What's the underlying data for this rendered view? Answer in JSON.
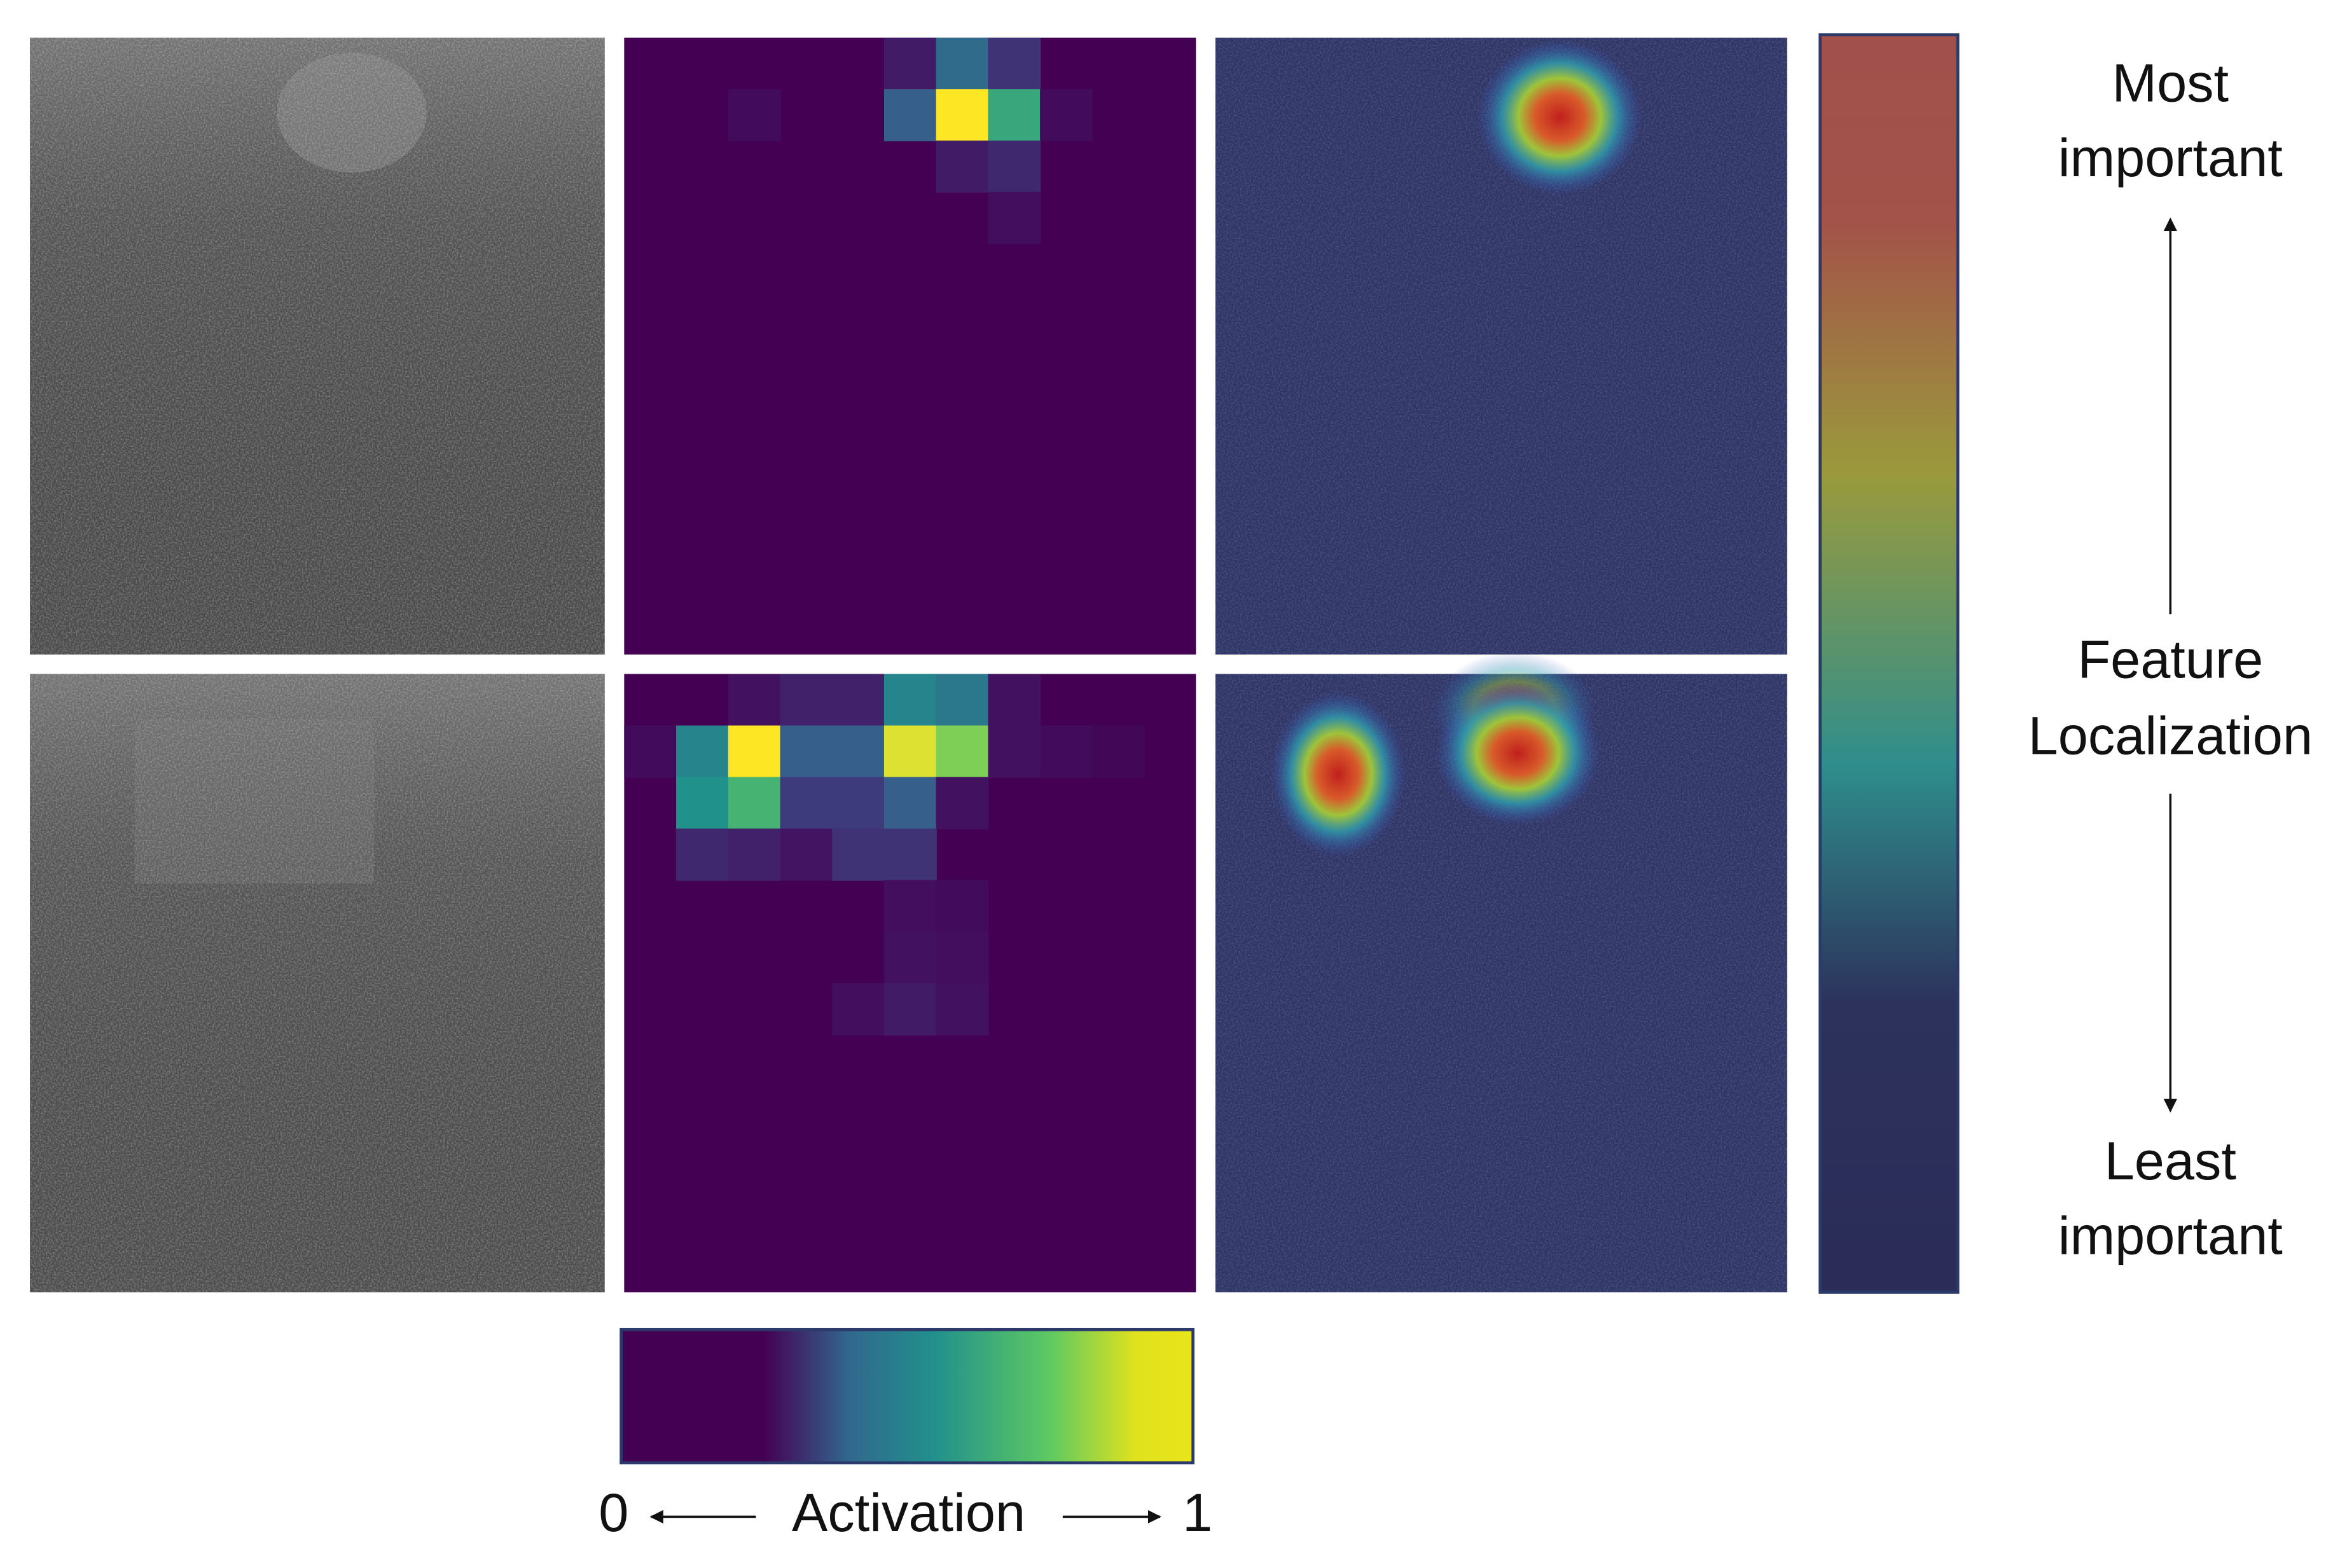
{
  "heatmaps": [
    {
      "cells": [
        {
          "row": 0,
          "col": 5,
          "value": 0.08
        },
        {
          "row": 0,
          "col": 6,
          "value": 0.35
        },
        {
          "row": 0,
          "col": 7,
          "value": 0.15
        },
        {
          "row": 1,
          "col": 2,
          "value": 0.03
        },
        {
          "row": 1,
          "col": 5,
          "value": 0.3
        },
        {
          "row": 1,
          "col": 6,
          "value": 1
        },
        {
          "row": 1,
          "col": 7,
          "value": 0.6
        },
        {
          "row": 1,
          "col": 8,
          "value": 0.03
        },
        {
          "row": 2,
          "col": 6,
          "value": 0.08
        },
        {
          "row": 2,
          "col": 7,
          "value": 0.12
        },
        {
          "row": 3,
          "col": 7,
          "value": 0.04
        }
      ]
    },
    {
      "cells": [
        {
          "row": 0,
          "col": 2,
          "value": 0.05
        },
        {
          "row": 0,
          "col": 3,
          "value": 0.1
        },
        {
          "row": 0,
          "col": 4,
          "value": 0.1
        },
        {
          "row": 0,
          "col": 5,
          "value": 0.45
        },
        {
          "row": 0,
          "col": 6,
          "value": 0.4
        },
        {
          "row": 0,
          "col": 7,
          "value": 0.05
        },
        {
          "row": 1,
          "col": 0,
          "value": 0.03
        },
        {
          "row": 1,
          "col": 1,
          "value": 0.45
        },
        {
          "row": 1,
          "col": 2,
          "value": 1
        },
        {
          "row": 1,
          "col": 3,
          "value": 0.3
        },
        {
          "row": 1,
          "col": 4,
          "value": 0.3
        },
        {
          "row": 1,
          "col": 5,
          "value": 0.95
        },
        {
          "row": 1,
          "col": 6,
          "value": 0.8
        },
        {
          "row": 1,
          "col": 7,
          "value": 0.05
        },
        {
          "row": 1,
          "col": 8,
          "value": 0.03
        },
        {
          "row": 1,
          "col": 9,
          "value": 0.02
        },
        {
          "row": 2,
          "col": 1,
          "value": 0.5
        },
        {
          "row": 2,
          "col": 2,
          "value": 0.65
        },
        {
          "row": 2,
          "col": 3,
          "value": 0.18
        },
        {
          "row": 2,
          "col": 4,
          "value": 0.18
        },
        {
          "row": 2,
          "col": 5,
          "value": 0.3
        },
        {
          "row": 2,
          "col": 6,
          "value": 0.05
        },
        {
          "row": 3,
          "col": 1,
          "value": 0.12
        },
        {
          "row": 3,
          "col": 2,
          "value": 0.1
        },
        {
          "row": 3,
          "col": 3,
          "value": 0.06
        },
        {
          "row": 3,
          "col": 4,
          "value": 0.15
        },
        {
          "row": 3,
          "col": 5,
          "value": 0.15
        },
        {
          "row": 4,
          "col": 5,
          "value": 0.04
        },
        {
          "row": 4,
          "col": 6,
          "value": 0.03
        },
        {
          "row": 5,
          "col": 5,
          "value": 0.05
        },
        {
          "row": 5,
          "col": 6,
          "value": 0.04
        },
        {
          "row": 6,
          "col": 4,
          "value": 0.04
        },
        {
          "row": 6,
          "col": 5,
          "value": 0.08
        },
        {
          "row": 6,
          "col": 6,
          "value": 0.05
        }
      ]
    }
  ],
  "activation_bar": {
    "min": 0,
    "max": 1,
    "label": "Activation"
  },
  "importance_bar": {
    "top": [
      "Most",
      "important"
    ],
    "middle": [
      "Feature",
      "Localization"
    ],
    "bottom": [
      "Least",
      "important"
    ]
  }
}
